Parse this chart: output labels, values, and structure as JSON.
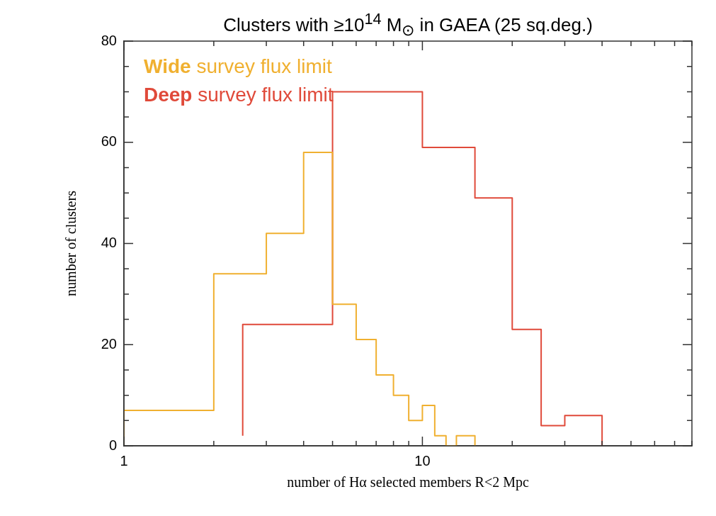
{
  "chart_data": {
    "type": "step",
    "title": "Clusters with ≥10$^{14}$ M$_{⊙}$ in GAEA (25 sq.deg.)",
    "xlabel": "number of Hα selected members R<2 Mpc",
    "ylabel": "number of clusters",
    "log": "x",
    "legend": "top left",
    "grid": false,
    "xlim": [
      1,
      80
    ],
    "xticks": [
      1,
      {
        "value": 2,
        "label": null
      },
      {
        "value": 3,
        "label": null
      },
      {
        "value": 4,
        "label": null
      },
      {
        "value": 5,
        "label": null
      },
      {
        "value": 6,
        "label": null
      },
      {
        "value": 7,
        "label": null
      },
      {
        "value": 8,
        "label": null
      },
      {
        "value": 9,
        "label": null
      },
      10,
      {
        "value": 20,
        "label": null
      },
      {
        "value": 30,
        "label": null
      },
      {
        "value": 40,
        "label": null
      },
      {
        "value": 50,
        "label": null
      },
      {
        "value": 60,
        "label": null
      },
      {
        "value": 70,
        "label": null
      },
      {
        "value": 80,
        "label": null
      }
    ],
    "ylim": [
      0,
      80
    ],
    "yticks": [
      0,
      {
        "value": 5,
        "label": null
      },
      {
        "value": 10,
        "label": null
      },
      {
        "value": 15,
        "label": null
      },
      20,
      {
        "value": 25,
        "label": null
      },
      {
        "value": 30,
        "label": null
      },
      {
        "value": 35,
        "label": null
      },
      40,
      {
        "value": 45,
        "label": null
      },
      {
        "value": 50,
        "label": null
      },
      {
        "value": 55,
        "label": null
      },
      60,
      {
        "value": 65,
        "label": null
      },
      {
        "value": 70,
        "label": null
      },
      {
        "value": 75,
        "label": null
      },
      80
    ],
    "series": [
      {
        "name": "Wide survey flux limit",
        "color": "#f0b030",
        "x": [
          1,
          2,
          3,
          4,
          5,
          6,
          7,
          8,
          9,
          10,
          11,
          12,
          13,
          14,
          15,
          15
        ],
        "values": [
          0,
          7,
          34,
          42,
          58,
          28,
          21,
          14,
          10,
          5,
          8,
          2,
          0,
          2,
          2,
          0
        ]
      },
      {
        "name": "Deep survey flux limit",
        "color": "#e04a3a",
        "x": [
          2.5,
          5,
          10,
          15,
          20,
          25,
          30,
          35,
          40,
          40
        ],
        "values": [
          2,
          24,
          70,
          59,
          49,
          23,
          4,
          6,
          6,
          0
        ]
      }
    ]
  }
}
